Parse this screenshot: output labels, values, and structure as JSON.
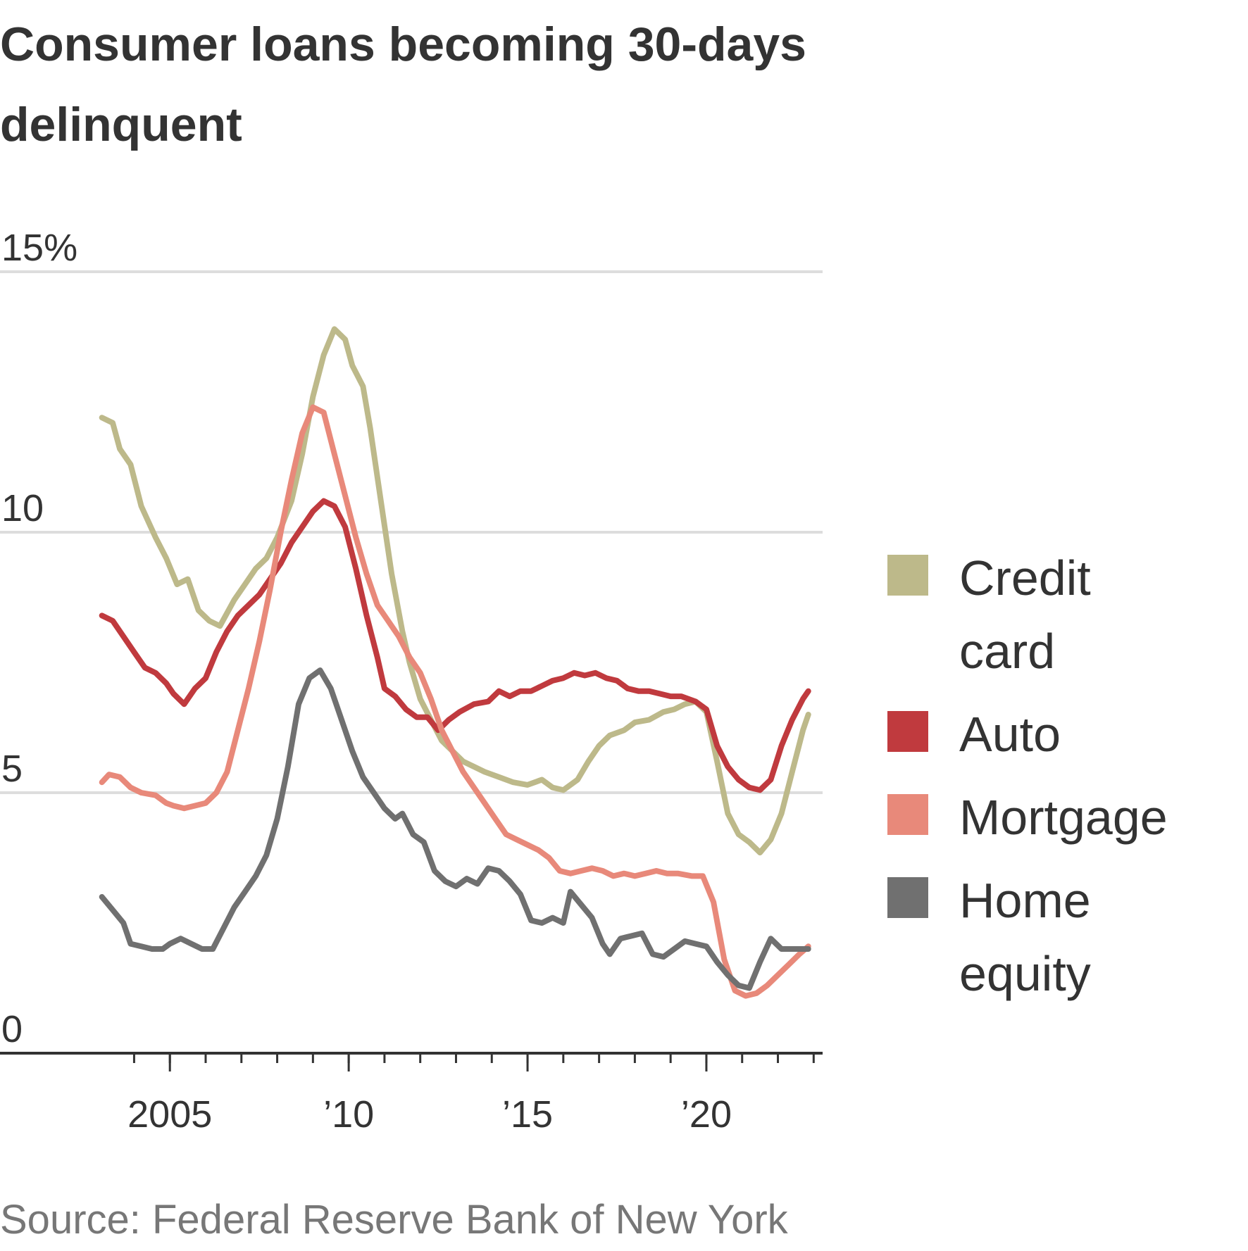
{
  "title_line1": "Consumer loans becoming 30-days",
  "title_line2": "delinquent",
  "source": "Source: Federal Reserve Bank of New York",
  "chart_data": {
    "type": "line",
    "title": "Consumer loans becoming 30-days delinquent",
    "xlabel": "",
    "ylabel": "",
    "xlim": [
      2000.25,
      2023.25
    ],
    "ylim": [
      0,
      15
    ],
    "grid": true,
    "legend_position": "right",
    "y_ticks": [
      {
        "value": 0,
        "label": "0"
      },
      {
        "value": 5,
        "label": "5"
      },
      {
        "value": 10,
        "label": "10"
      },
      {
        "value": 15,
        "label": "15%"
      }
    ],
    "x_ticks": [
      {
        "value": 2005,
        "label": "2005"
      },
      {
        "value": 2010,
        "label": "’10"
      },
      {
        "value": 2015,
        "label": "’15"
      },
      {
        "value": 2020,
        "label": "’20"
      }
    ],
    "x_minor_ticks": [
      2004,
      2005,
      2006,
      2007,
      2008,
      2009,
      2010,
      2011,
      2012,
      2013,
      2014,
      2015,
      2016,
      2017,
      2018,
      2019,
      2020,
      2021,
      2022,
      2023
    ],
    "series": [
      {
        "name": "Credit card",
        "legend_lines": [
          "Credit",
          "card"
        ],
        "color": "#BDB98A",
        "points": [
          [
            2003.1,
            12.2
          ],
          [
            2003.4,
            12.1
          ],
          [
            2003.6,
            11.6
          ],
          [
            2003.9,
            11.3
          ],
          [
            2004.2,
            10.5
          ],
          [
            2004.6,
            9.9
          ],
          [
            2004.9,
            9.5
          ],
          [
            2005.2,
            9.0
          ],
          [
            2005.5,
            9.1
          ],
          [
            2005.8,
            8.5
          ],
          [
            2006.1,
            8.3
          ],
          [
            2006.4,
            8.2
          ],
          [
            2006.8,
            8.7
          ],
          [
            2007.1,
            9.0
          ],
          [
            2007.4,
            9.3
          ],
          [
            2007.7,
            9.5
          ],
          [
            2008.0,
            9.9
          ],
          [
            2008.4,
            10.6
          ],
          [
            2008.7,
            11.5
          ],
          [
            2009.0,
            12.6
          ],
          [
            2009.3,
            13.4
          ],
          [
            2009.6,
            13.9
          ],
          [
            2009.9,
            13.7
          ],
          [
            2010.1,
            13.2
          ],
          [
            2010.4,
            12.8
          ],
          [
            2010.6,
            12.0
          ],
          [
            2010.9,
            10.6
          ],
          [
            2011.2,
            9.2
          ],
          [
            2011.5,
            8.1
          ],
          [
            2011.7,
            7.5
          ],
          [
            2012.0,
            6.8
          ],
          [
            2012.3,
            6.4
          ],
          [
            2012.6,
            6.0
          ],
          [
            2012.9,
            5.8
          ],
          [
            2013.2,
            5.6
          ],
          [
            2013.5,
            5.5
          ],
          [
            2013.8,
            5.4
          ],
          [
            2014.2,
            5.3
          ],
          [
            2014.6,
            5.2
          ],
          [
            2015.0,
            5.15
          ],
          [
            2015.4,
            5.25
          ],
          [
            2015.7,
            5.1
          ],
          [
            2016.0,
            5.05
          ],
          [
            2016.4,
            5.25
          ],
          [
            2016.7,
            5.6
          ],
          [
            2017.0,
            5.9
          ],
          [
            2017.3,
            6.1
          ],
          [
            2017.7,
            6.2
          ],
          [
            2018.0,
            6.35
          ],
          [
            2018.4,
            6.4
          ],
          [
            2018.8,
            6.55
          ],
          [
            2019.1,
            6.6
          ],
          [
            2019.4,
            6.7
          ],
          [
            2019.7,
            6.75
          ],
          [
            2020.0,
            6.55
          ],
          [
            2020.3,
            5.6
          ],
          [
            2020.6,
            4.6
          ],
          [
            2020.9,
            4.2
          ],
          [
            2021.2,
            4.05
          ],
          [
            2021.5,
            3.85
          ],
          [
            2021.8,
            4.1
          ],
          [
            2022.1,
            4.6
          ],
          [
            2022.4,
            5.4
          ],
          [
            2022.7,
            6.2
          ],
          [
            2022.85,
            6.5
          ]
        ]
      },
      {
        "name": "Auto",
        "legend_lines": [
          "Auto"
        ],
        "color": "#C03A3E",
        "points": [
          [
            2003.1,
            8.4
          ],
          [
            2003.4,
            8.3
          ],
          [
            2003.7,
            8.0
          ],
          [
            2004.0,
            7.7
          ],
          [
            2004.3,
            7.4
          ],
          [
            2004.6,
            7.3
          ],
          [
            2004.9,
            7.1
          ],
          [
            2005.1,
            6.9
          ],
          [
            2005.4,
            6.7
          ],
          [
            2005.7,
            7.0
          ],
          [
            2006.0,
            7.2
          ],
          [
            2006.3,
            7.7
          ],
          [
            2006.6,
            8.1
          ],
          [
            2006.9,
            8.4
          ],
          [
            2007.2,
            8.6
          ],
          [
            2007.5,
            8.8
          ],
          [
            2007.8,
            9.1
          ],
          [
            2008.1,
            9.4
          ],
          [
            2008.4,
            9.8
          ],
          [
            2008.7,
            10.1
          ],
          [
            2009.0,
            10.4
          ],
          [
            2009.3,
            10.6
          ],
          [
            2009.6,
            10.5
          ],
          [
            2009.9,
            10.1
          ],
          [
            2010.2,
            9.3
          ],
          [
            2010.5,
            8.4
          ],
          [
            2010.8,
            7.6
          ],
          [
            2011.0,
            7.0
          ],
          [
            2011.3,
            6.85
          ],
          [
            2011.6,
            6.6
          ],
          [
            2011.9,
            6.45
          ],
          [
            2012.2,
            6.45
          ],
          [
            2012.5,
            6.2
          ],
          [
            2012.8,
            6.4
          ],
          [
            2013.1,
            6.55
          ],
          [
            2013.5,
            6.7
          ],
          [
            2013.9,
            6.75
          ],
          [
            2014.2,
            6.95
          ],
          [
            2014.5,
            6.85
          ],
          [
            2014.8,
            6.95
          ],
          [
            2015.1,
            6.95
          ],
          [
            2015.4,
            7.05
          ],
          [
            2015.7,
            7.15
          ],
          [
            2016.0,
            7.2
          ],
          [
            2016.3,
            7.3
          ],
          [
            2016.6,
            7.25
          ],
          [
            2016.9,
            7.3
          ],
          [
            2017.2,
            7.2
          ],
          [
            2017.5,
            7.15
          ],
          [
            2017.8,
            7.0
          ],
          [
            2018.1,
            6.95
          ],
          [
            2018.4,
            6.95
          ],
          [
            2018.7,
            6.9
          ],
          [
            2019.0,
            6.85
          ],
          [
            2019.3,
            6.85
          ],
          [
            2019.7,
            6.75
          ],
          [
            2020.0,
            6.6
          ],
          [
            2020.3,
            5.9
          ],
          [
            2020.6,
            5.5
          ],
          [
            2020.9,
            5.25
          ],
          [
            2021.2,
            5.1
          ],
          [
            2021.5,
            5.05
          ],
          [
            2021.8,
            5.25
          ],
          [
            2022.1,
            5.9
          ],
          [
            2022.4,
            6.4
          ],
          [
            2022.7,
            6.8
          ],
          [
            2022.85,
            6.95
          ]
        ]
      },
      {
        "name": "Mortgage",
        "legend_lines": [
          "Mortgage"
        ],
        "color": "#E8897A",
        "points": [
          [
            2003.1,
            5.2
          ],
          [
            2003.3,
            5.35
          ],
          [
            2003.6,
            5.3
          ],
          [
            2003.9,
            5.1
          ],
          [
            2004.2,
            5.0
          ],
          [
            2004.6,
            4.95
          ],
          [
            2004.9,
            4.8
          ],
          [
            2005.1,
            4.75
          ],
          [
            2005.4,
            4.7
          ],
          [
            2005.7,
            4.75
          ],
          [
            2006.0,
            4.8
          ],
          [
            2006.3,
            5.0
          ],
          [
            2006.6,
            5.4
          ],
          [
            2006.9,
            6.2
          ],
          [
            2007.2,
            7.0
          ],
          [
            2007.5,
            7.9
          ],
          [
            2007.8,
            8.9
          ],
          [
            2008.1,
            10.0
          ],
          [
            2008.4,
            11.0
          ],
          [
            2008.7,
            11.9
          ],
          [
            2009.0,
            12.4
          ],
          [
            2009.3,
            12.3
          ],
          [
            2009.6,
            11.5
          ],
          [
            2009.9,
            10.7
          ],
          [
            2010.2,
            9.9
          ],
          [
            2010.5,
            9.2
          ],
          [
            2010.8,
            8.6
          ],
          [
            2011.1,
            8.3
          ],
          [
            2011.4,
            8.0
          ],
          [
            2011.7,
            7.6
          ],
          [
            2012.0,
            7.3
          ],
          [
            2012.3,
            6.8
          ],
          [
            2012.6,
            6.2
          ],
          [
            2012.9,
            5.8
          ],
          [
            2013.2,
            5.4
          ],
          [
            2013.5,
            5.1
          ],
          [
            2013.8,
            4.8
          ],
          [
            2014.1,
            4.5
          ],
          [
            2014.4,
            4.2
          ],
          [
            2014.7,
            4.1
          ],
          [
            2015.0,
            4.0
          ],
          [
            2015.3,
            3.9
          ],
          [
            2015.6,
            3.75
          ],
          [
            2015.9,
            3.5
          ],
          [
            2016.2,
            3.45
          ],
          [
            2016.5,
            3.5
          ],
          [
            2016.8,
            3.55
          ],
          [
            2017.1,
            3.5
          ],
          [
            2017.4,
            3.4
          ],
          [
            2017.7,
            3.45
          ],
          [
            2018.0,
            3.4
          ],
          [
            2018.3,
            3.45
          ],
          [
            2018.6,
            3.5
          ],
          [
            2018.9,
            3.45
          ],
          [
            2019.2,
            3.45
          ],
          [
            2019.6,
            3.4
          ],
          [
            2019.9,
            3.4
          ],
          [
            2020.2,
            2.9
          ],
          [
            2020.5,
            1.8
          ],
          [
            2020.8,
            1.2
          ],
          [
            2021.1,
            1.1
          ],
          [
            2021.4,
            1.15
          ],
          [
            2021.7,
            1.3
          ],
          [
            2022.0,
            1.5
          ],
          [
            2022.3,
            1.7
          ],
          [
            2022.6,
            1.9
          ],
          [
            2022.85,
            2.05
          ]
        ]
      },
      {
        "name": "Home equity",
        "legend_lines": [
          "Home",
          "equity"
        ],
        "color": "#707070",
        "points": [
          [
            2003.1,
            3.0
          ],
          [
            2003.4,
            2.75
          ],
          [
            2003.7,
            2.5
          ],
          [
            2003.9,
            2.1
          ],
          [
            2004.2,
            2.05
          ],
          [
            2004.5,
            2.0
          ],
          [
            2004.8,
            2.0
          ],
          [
            2005.0,
            2.1
          ],
          [
            2005.3,
            2.2
          ],
          [
            2005.6,
            2.1
          ],
          [
            2005.9,
            2.0
          ],
          [
            2006.2,
            2.0
          ],
          [
            2006.5,
            2.4
          ],
          [
            2006.8,
            2.8
          ],
          [
            2007.1,
            3.1
          ],
          [
            2007.4,
            3.4
          ],
          [
            2007.7,
            3.8
          ],
          [
            2008.0,
            4.5
          ],
          [
            2008.3,
            5.5
          ],
          [
            2008.6,
            6.7
          ],
          [
            2008.9,
            7.2
          ],
          [
            2009.2,
            7.35
          ],
          [
            2009.5,
            7.0
          ],
          [
            2009.8,
            6.4
          ],
          [
            2010.1,
            5.8
          ],
          [
            2010.4,
            5.3
          ],
          [
            2010.7,
            5.0
          ],
          [
            2011.0,
            4.7
          ],
          [
            2011.3,
            4.5
          ],
          [
            2011.5,
            4.6
          ],
          [
            2011.8,
            4.2
          ],
          [
            2012.1,
            4.05
          ],
          [
            2012.4,
            3.5
          ],
          [
            2012.7,
            3.3
          ],
          [
            2013.0,
            3.2
          ],
          [
            2013.3,
            3.35
          ],
          [
            2013.6,
            3.25
          ],
          [
            2013.9,
            3.55
          ],
          [
            2014.2,
            3.5
          ],
          [
            2014.5,
            3.3
          ],
          [
            2014.8,
            3.05
          ],
          [
            2015.1,
            2.55
          ],
          [
            2015.4,
            2.5
          ],
          [
            2015.7,
            2.6
          ],
          [
            2016.0,
            2.5
          ],
          [
            2016.2,
            3.1
          ],
          [
            2016.5,
            2.85
          ],
          [
            2016.8,
            2.6
          ],
          [
            2017.1,
            2.1
          ],
          [
            2017.3,
            1.9
          ],
          [
            2017.6,
            2.2
          ],
          [
            2017.9,
            2.25
          ],
          [
            2018.2,
            2.3
          ],
          [
            2018.5,
            1.9
          ],
          [
            2018.8,
            1.85
          ],
          [
            2019.1,
            2.0
          ],
          [
            2019.4,
            2.15
          ],
          [
            2019.7,
            2.1
          ],
          [
            2020.0,
            2.05
          ],
          [
            2020.3,
            1.75
          ],
          [
            2020.6,
            1.5
          ],
          [
            2020.9,
            1.3
          ],
          [
            2021.2,
            1.25
          ],
          [
            2021.5,
            1.75
          ],
          [
            2021.8,
            2.2
          ],
          [
            2022.1,
            2.0
          ],
          [
            2022.4,
            2.0
          ],
          [
            2022.7,
            2.0
          ],
          [
            2022.85,
            2.0
          ]
        ]
      }
    ]
  }
}
